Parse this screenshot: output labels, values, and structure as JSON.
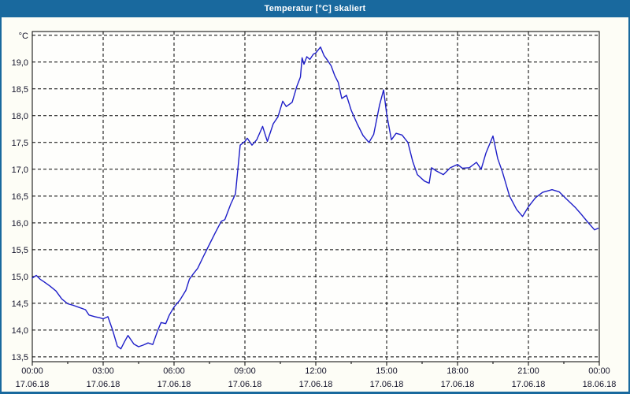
{
  "window": {
    "title": "Temperatur [°C] skaliert",
    "titlebar_color": "#19699e",
    "title_text_color": "#ffffff",
    "label_color": "#14142a"
  },
  "chart_data": {
    "type": "line",
    "title": "Temperatur [°C] skaliert",
    "unit_label": "°C",
    "series_color": "#1e1ec8",
    "grid": {
      "dashed": true,
      "color": "#000000",
      "frame_color": "#000000"
    },
    "plot_background": "#fefefc",
    "xlabel": "",
    "ylabel": "°C",
    "ylim": [
      13.41,
      19.57
    ],
    "xlim_hours": [
      0,
      24
    ],
    "legend": "none",
    "y_gridline_top_value": 19.5,
    "y_ticks": [
      {
        "value": 19.0,
        "label": "19,0"
      },
      {
        "value": 18.5,
        "label": "18,5"
      },
      {
        "value": 18.0,
        "label": "18,0"
      },
      {
        "value": 17.5,
        "label": "17,5"
      },
      {
        "value": 17.0,
        "label": "17,0"
      },
      {
        "value": 16.5,
        "label": "16,5"
      },
      {
        "value": 16.0,
        "label": "16,0"
      },
      {
        "value": 15.5,
        "label": "15,5"
      },
      {
        "value": 15.0,
        "label": "15,0"
      },
      {
        "value": 14.5,
        "label": "14,5"
      },
      {
        "value": 14.0,
        "label": "14,0"
      },
      {
        "value": 13.5,
        "label": "13,5"
      }
    ],
    "x_ticks": [
      {
        "hour": 0,
        "time": "00:00",
        "date": "17.06.18"
      },
      {
        "hour": 3,
        "time": "03:00",
        "date": "17.06.18"
      },
      {
        "hour": 6,
        "time": "06:00",
        "date": "17.06.18"
      },
      {
        "hour": 9,
        "time": "09:00",
        "date": "17.06.18"
      },
      {
        "hour": 12,
        "time": "12:00",
        "date": "17.06.18"
      },
      {
        "hour": 15,
        "time": "15:00",
        "date": "17.06.18"
      },
      {
        "hour": 18,
        "time": "18:00",
        "date": "17.06.18"
      },
      {
        "hour": 21,
        "time": "21:00",
        "date": "17.06.18"
      },
      {
        "hour": 24,
        "time": "00:00",
        "date": "18.06.18"
      }
    ],
    "x_minor_ticks_hours": [
      1.5,
      4.5,
      7.5,
      10.5,
      13.5,
      16.5,
      19.5,
      22.5
    ],
    "points": [
      [
        0.0,
        14.97
      ],
      [
        0.17,
        15.02
      ],
      [
        0.33,
        14.95
      ],
      [
        0.5,
        14.9
      ],
      [
        0.75,
        14.82
      ],
      [
        1.0,
        14.73
      ],
      [
        1.25,
        14.58
      ],
      [
        1.5,
        14.49
      ],
      [
        1.75,
        14.46
      ],
      [
        2.0,
        14.42
      ],
      [
        2.25,
        14.38
      ],
      [
        2.4,
        14.28
      ],
      [
        2.65,
        14.25
      ],
      [
        2.85,
        14.23
      ],
      [
        3.0,
        14.21
      ],
      [
        3.2,
        14.25
      ],
      [
        3.4,
        14.0
      ],
      [
        3.6,
        13.7
      ],
      [
        3.75,
        13.65
      ],
      [
        3.9,
        13.78
      ],
      [
        4.05,
        13.9
      ],
      [
        4.3,
        13.74
      ],
      [
        4.5,
        13.69
      ],
      [
        4.7,
        13.72
      ],
      [
        4.9,
        13.76
      ],
      [
        5.1,
        13.73
      ],
      [
        5.3,
        13.98
      ],
      [
        5.45,
        14.14
      ],
      [
        5.65,
        14.12
      ],
      [
        5.8,
        14.28
      ],
      [
        6.0,
        14.43
      ],
      [
        6.25,
        14.56
      ],
      [
        6.5,
        14.74
      ],
      [
        6.65,
        14.95
      ],
      [
        6.8,
        15.04
      ],
      [
        7.0,
        15.15
      ],
      [
        7.25,
        15.38
      ],
      [
        7.5,
        15.6
      ],
      [
        7.75,
        15.82
      ],
      [
        8.0,
        16.03
      ],
      [
        8.15,
        16.06
      ],
      [
        8.4,
        16.35
      ],
      [
        8.6,
        16.54
      ],
      [
        8.8,
        17.45
      ],
      [
        9.0,
        17.52
      ],
      [
        9.1,
        17.58
      ],
      [
        9.3,
        17.45
      ],
      [
        9.5,
        17.55
      ],
      [
        9.75,
        17.8
      ],
      [
        9.95,
        17.52
      ],
      [
        10.2,
        17.85
      ],
      [
        10.4,
        17.98
      ],
      [
        10.6,
        18.27
      ],
      [
        10.75,
        18.17
      ],
      [
        11.0,
        18.25
      ],
      [
        11.2,
        18.55
      ],
      [
        11.35,
        18.72
      ],
      [
        11.42,
        19.08
      ],
      [
        11.5,
        18.96
      ],
      [
        11.62,
        19.1
      ],
      [
        11.75,
        19.05
      ],
      [
        11.9,
        19.15
      ],
      [
        12.0,
        19.17
      ],
      [
        12.2,
        19.28
      ],
      [
        12.35,
        19.12
      ],
      [
        12.5,
        19.03
      ],
      [
        12.65,
        18.93
      ],
      [
        12.8,
        18.75
      ],
      [
        12.95,
        18.62
      ],
      [
        13.1,
        18.32
      ],
      [
        13.3,
        18.38
      ],
      [
        13.5,
        18.1
      ],
      [
        13.75,
        17.85
      ],
      [
        14.0,
        17.63
      ],
      [
        14.25,
        17.5
      ],
      [
        14.45,
        17.65
      ],
      [
        14.7,
        18.2
      ],
      [
        14.87,
        18.48
      ],
      [
        15.0,
        18.03
      ],
      [
        15.2,
        17.55
      ],
      [
        15.4,
        17.67
      ],
      [
        15.65,
        17.64
      ],
      [
        15.9,
        17.5
      ],
      [
        16.1,
        17.15
      ],
      [
        16.3,
        16.9
      ],
      [
        16.6,
        16.78
      ],
      [
        16.8,
        16.74
      ],
      [
        16.9,
        17.03
      ],
      [
        17.1,
        16.97
      ],
      [
        17.4,
        16.9
      ],
      [
        17.7,
        17.03
      ],
      [
        18.0,
        17.09
      ],
      [
        18.2,
        17.02
      ],
      [
        18.5,
        17.03
      ],
      [
        18.8,
        17.13
      ],
      [
        19.0,
        17.0
      ],
      [
        19.2,
        17.3
      ],
      [
        19.5,
        17.62
      ],
      [
        19.7,
        17.2
      ],
      [
        19.9,
        16.95
      ],
      [
        20.2,
        16.5
      ],
      [
        20.5,
        16.25
      ],
      [
        20.75,
        16.12
      ],
      [
        21.0,
        16.3
      ],
      [
        21.3,
        16.47
      ],
      [
        21.6,
        16.57
      ],
      [
        22.0,
        16.62
      ],
      [
        22.3,
        16.58
      ],
      [
        22.6,
        16.45
      ],
      [
        23.0,
        16.28
      ],
      [
        23.2,
        16.18
      ],
      [
        23.5,
        16.02
      ],
      [
        23.8,
        15.87
      ],
      [
        23.95,
        15.9
      ]
    ]
  }
}
